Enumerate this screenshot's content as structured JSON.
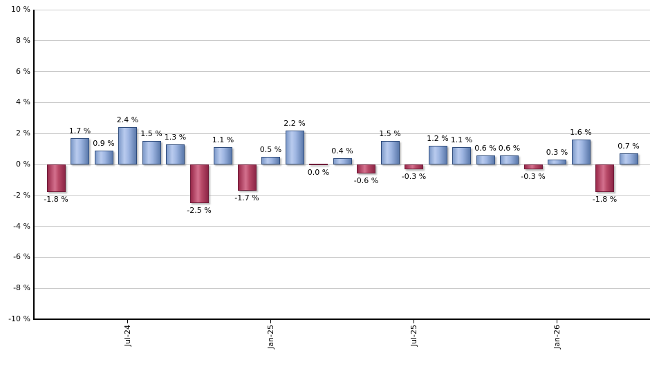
{
  "chart_data": {
    "type": "bar",
    "title": "",
    "xlabel": "",
    "ylabel": "",
    "unit": "%",
    "legend": "none",
    "grid": "horizontal",
    "y_axis": {
      "min": -10,
      "max": 10,
      "step": 2
    },
    "y_tick_labels": [
      "10 %",
      "8 %",
      "6 %",
      "4 %",
      "2 %",
      "0 %",
      "-2 %",
      "-4 %",
      "-6 %",
      "-8 %",
      "-10 %"
    ],
    "values": [
      -1.8,
      1.7,
      0.9,
      2.4,
      1.5,
      1.3,
      -2.5,
      1.1,
      -1.7,
      0.5,
      2.2,
      0.0,
      0.4,
      -0.6,
      1.5,
      -0.3,
      1.2,
      1.1,
      0.6,
      0.6,
      -0.3,
      0.3,
      1.6,
      -1.8,
      0.7
    ],
    "value_labels": [
      "-1.8 %",
      "1.7 %",
      "0.9 %",
      "2.4 %",
      "1.5 %",
      "1.3 %",
      "-2.5 %",
      "1.1 %",
      "-1.7 %",
      "0.5 %",
      "2.2 %",
      "0.0 %",
      "0.4 %",
      "-0.6 %",
      "1.5 %",
      "-0.3 %",
      "1.2 %",
      "1.1 %",
      "0.6 %",
      "0.6 %",
      "-0.3 %",
      "0.3 %",
      "1.6 %",
      "-1.8 %",
      "0.7 %"
    ],
    "x_ticks": [
      {
        "label": "Jul-24",
        "bar_index": 3
      },
      {
        "label": "Jan-25",
        "bar_index": 9
      },
      {
        "label": "Jul-25",
        "bar_index": 15
      },
      {
        "label": "Jan-26",
        "bar_index": 21
      }
    ],
    "colors": {
      "positive_bar": "#7d9bd2",
      "negative_bar": "#b43a5e",
      "gridline": "#c9c9c9",
      "axis": "#000000",
      "label_text": "#000000"
    }
  }
}
